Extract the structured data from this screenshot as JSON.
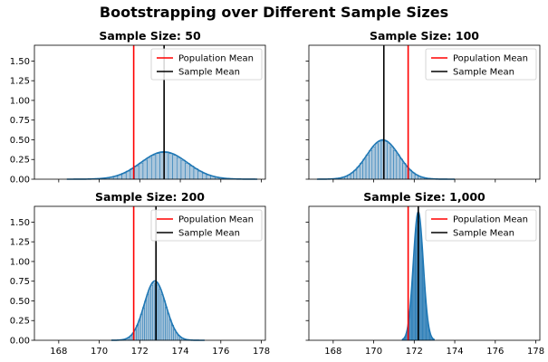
{
  "figure": {
    "suptitle": "Bootstrapping over Different Sample Sizes"
  },
  "chart_data": [
    {
      "type": "histogram",
      "title": "Sample Size: 50",
      "population_mean": 171.7,
      "sample_mean": 173.2,
      "dist_mean": 173.2,
      "dist_sd": 1.15,
      "dist_min": 168.4,
      "dist_max": 177.8,
      "xlim": [
        166.8,
        178.2
      ],
      "ylim": [
        0,
        1.7
      ],
      "xticks": [
        168,
        170,
        172,
        174,
        176,
        178
      ],
      "yticks": [
        0.0,
        0.25,
        0.5,
        0.75,
        1.0,
        1.25,
        1.5
      ],
      "show_xtick_labels": false,
      "show_ytick_labels": true,
      "legend": [
        "Population Mean",
        "Sample Mean"
      ],
      "legend_loc": "upper right"
    },
    {
      "type": "histogram",
      "title": "Sample Size: 100",
      "population_mean": 171.7,
      "sample_mean": 170.5,
      "dist_mean": 170.45,
      "dist_sd": 0.8,
      "dist_min": 167.2,
      "dist_max": 174.0,
      "xlim": [
        166.8,
        178.2
      ],
      "ylim": [
        0,
        1.7
      ],
      "xticks": [
        168,
        170,
        172,
        174,
        176,
        178
      ],
      "yticks": [
        0.0,
        0.25,
        0.5,
        0.75,
        1.0,
        1.25,
        1.5
      ],
      "show_xtick_labels": false,
      "show_ytick_labels": false,
      "legend": [
        "Population Mean",
        "Sample Mean"
      ],
      "legend_loc": "upper right"
    },
    {
      "type": "histogram",
      "title": "Sample Size: 200",
      "population_mean": 171.7,
      "sample_mean": 172.8,
      "dist_mean": 172.75,
      "dist_sd": 0.53,
      "dist_min": 170.6,
      "dist_max": 175.2,
      "xlim": [
        166.8,
        178.2
      ],
      "ylim": [
        0,
        1.7
      ],
      "xticks": [
        168,
        170,
        172,
        174,
        176,
        178
      ],
      "yticks": [
        0.0,
        0.25,
        0.5,
        0.75,
        1.0,
        1.25,
        1.5
      ],
      "show_xtick_labels": true,
      "show_ytick_labels": true,
      "legend": [
        "Population Mean",
        "Sample Mean"
      ],
      "legend_loc": "upper right"
    },
    {
      "type": "histogram",
      "title": "Sample Size: 1,000",
      "population_mean": 171.7,
      "sample_mean": 172.2,
      "dist_mean": 172.2,
      "dist_sd": 0.245,
      "dist_min": 171.4,
      "dist_max": 173.0,
      "xlim": [
        166.8,
        178.2
      ],
      "ylim": [
        0,
        1.7
      ],
      "xticks": [
        168,
        170,
        172,
        174,
        176,
        178
      ],
      "yticks": [
        0.0,
        0.25,
        0.5,
        0.75,
        1.0,
        1.25,
        1.5
      ],
      "show_xtick_labels": true,
      "show_ytick_labels": false,
      "legend": [
        "Population Mean",
        "Sample Mean"
      ],
      "legend_loc": "upper right"
    }
  ],
  "colors": {
    "population_mean": "#ff0000",
    "sample_mean": "#000000",
    "kde": "#1f77b4",
    "hist_fill": "#9dbdd6",
    "hist_edge": "#1f77b4",
    "axes": "#000000"
  }
}
